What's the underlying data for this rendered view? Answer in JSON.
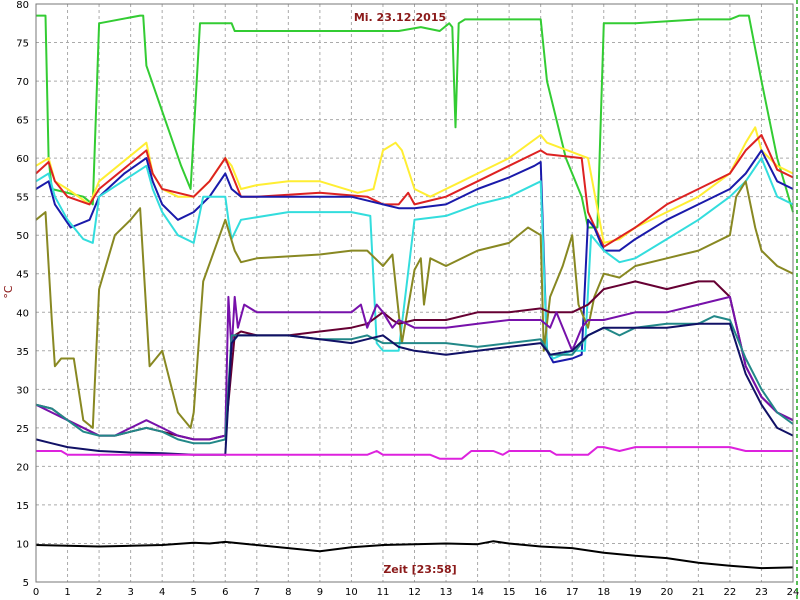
{
  "chart_data": {
    "type": "line",
    "title": "Mi. 23.12.2015",
    "xlabel": "Zeit [23:58]",
    "ylabel": "°C",
    "xlim": [
      0,
      24
    ],
    "ylim": [
      5,
      80
    ],
    "x_ticks": [
      "0",
      "1",
      "2",
      "3",
      "4",
      "5",
      "6",
      "7",
      "8",
      "9",
      "10",
      "11",
      "12",
      "13",
      "14",
      "15",
      "16",
      "17",
      "18",
      "19",
      "20",
      "21",
      "22",
      "23",
      "24"
    ],
    "y_ticks": [
      "5",
      "10",
      "15",
      "20",
      "25",
      "30",
      "35",
      "40",
      "45",
      "50",
      "55",
      "60",
      "65",
      "70",
      "75",
      "80"
    ],
    "grid": true,
    "series": [
      {
        "color": "#33cc33",
        "x": [
          0,
          0.3,
          0.4,
          0.5,
          1.5,
          1.8,
          2,
          3.3,
          3.4,
          3.5,
          4.6,
          4.9,
          5.2,
          6.2,
          6.3,
          6.5,
          11,
          11.5,
          12.2,
          12.8,
          13.1,
          13.2,
          13.3,
          13.4,
          13.6,
          15.5,
          16,
          16.2,
          16.8,
          17.3,
          17.5,
          17.8,
          18,
          19,
          21,
          22,
          22.3,
          22.6,
          23,
          23.5,
          24
        ],
        "y": [
          78.5,
          78.5,
          60,
          56,
          55,
          54,
          77.5,
          78.5,
          78.5,
          72,
          59,
          56,
          77.5,
          77.5,
          76.5,
          76.5,
          76.5,
          76.5,
          77,
          76.5,
          77.5,
          77,
          64,
          77.5,
          78,
          78,
          78,
          70,
          60,
          55,
          51,
          51,
          77.5,
          77.5,
          78,
          78,
          78.5,
          78.5,
          70,
          60,
          53
        ]
      },
      {
        "color": "#ffee33",
        "x": [
          0,
          0.4,
          0.6,
          1,
          1.7,
          2,
          3.5,
          3.7,
          4,
          4.5,
          5,
          5.5,
          6,
          6.2,
          6.5,
          7,
          8,
          9,
          10.2,
          10.7,
          11,
          11.4,
          11.6,
          12,
          12.5,
          13,
          13.5,
          14,
          15,
          16,
          16.2,
          17.5,
          18,
          18.5,
          19,
          20,
          21,
          22,
          22.5,
          22.8,
          23,
          23.5,
          24
        ],
        "y": [
          59,
          60,
          57,
          56,
          54,
          57,
          62,
          58,
          56,
          55,
          55,
          57,
          60,
          59,
          56,
          56.5,
          57,
          57,
          55.5,
          56,
          61,
          62,
          61,
          56,
          55,
          56,
          57,
          58,
          60,
          63,
          62,
          60,
          49,
          49.5,
          51,
          53,
          55,
          58,
          62,
          64,
          61,
          59,
          58
        ]
      },
      {
        "color": "#dd2222",
        "x": [
          0,
          0.4,
          0.6,
          1,
          1.7,
          2,
          3.5,
          3.7,
          4,
          5,
          5.5,
          6,
          6.2,
          6.5,
          7,
          9,
          10.5,
          11,
          11.5,
          11.8,
          12,
          12.5,
          13,
          14,
          15,
          16,
          16.2,
          17.3,
          17.5,
          18,
          19,
          20,
          21,
          22,
          22.5,
          23,
          23.5,
          24
        ],
        "y": [
          58,
          59.5,
          57,
          55,
          54,
          56,
          61,
          58,
          56,
          55,
          57,
          60,
          58,
          55,
          55,
          55.5,
          55,
          54,
          54,
          55.5,
          54,
          54.5,
          55,
          57,
          59,
          61,
          60.5,
          60,
          53,
          48.5,
          51,
          54,
          56,
          58,
          61,
          63,
          58.5,
          57.5
        ]
      },
      {
        "color": "#1a1aaa",
        "x": [
          0,
          0.4,
          0.6,
          1.1,
          1.7,
          2,
          2.8,
          3.5,
          3.7,
          4,
          4.5,
          5,
          5.5,
          6,
          6.2,
          6.5,
          8,
          10,
          11,
          11.5,
          12,
          13,
          14,
          15,
          15.8,
          16,
          16.2,
          16.4,
          17,
          17.3,
          17.5,
          17.7,
          18,
          18.5,
          19,
          20,
          21,
          22,
          22.5,
          23,
          23.5,
          24
        ],
        "y": [
          56,
          57,
          54,
          51,
          52,
          55,
          58,
          60,
          57,
          54,
          52,
          53,
          55,
          58,
          56,
          55,
          55,
          55,
          54,
          53.5,
          53.5,
          54,
          56,
          57.5,
          59,
          59.5,
          35,
          33.5,
          34,
          34.5,
          52,
          51,
          48,
          48,
          49.5,
          52,
          54,
          56,
          58,
          61,
          57,
          56
        ]
      },
      {
        "color": "#33dddd",
        "x": [
          0,
          0.4,
          0.6,
          1,
          1.5,
          1.8,
          2,
          3.5,
          3.7,
          4,
          4.5,
          5,
          5.3,
          6,
          6.1,
          6.2,
          6.5,
          8,
          10,
          10.6,
          10.8,
          11,
          11.5,
          12,
          13,
          14,
          15,
          16,
          16.2,
          16.4,
          17,
          17.4,
          17.6,
          18,
          18.5,
          19,
          20,
          21,
          22,
          22.5,
          23,
          23.5,
          24
        ],
        "y": [
          57,
          58,
          55,
          52,
          49.5,
          49,
          55,
          59,
          56,
          53,
          50,
          49,
          55,
          55,
          52,
          49.5,
          52,
          53,
          53,
          52.5,
          36,
          35,
          35,
          52,
          52.5,
          54,
          55,
          57,
          35,
          34,
          35,
          35,
          50,
          48,
          46.5,
          47,
          49.5,
          52,
          55,
          57,
          60,
          55,
          54
        ]
      },
      {
        "color": "#888822",
        "x": [
          0,
          0.3,
          0.5,
          0.6,
          0.8,
          1.2,
          1.5,
          1.8,
          2,
          2.5,
          3,
          3.3,
          3.6,
          4,
          4.5,
          4.9,
          5,
          5.3,
          6,
          6.3,
          6.5,
          7,
          9,
          10,
          10.5,
          11,
          11.3,
          11.6,
          12,
          12.2,
          12.3,
          12.5,
          13,
          14,
          15,
          15.6,
          16,
          16.1,
          16.3,
          16.7,
          17,
          17.2,
          17.5,
          17.7,
          18,
          18.5,
          19,
          20,
          21,
          22,
          22.2,
          22.5,
          22.8,
          23,
          23.5,
          24
        ],
        "y": [
          52,
          53,
          39,
          33,
          34,
          34,
          26,
          25,
          43,
          50,
          52,
          53.5,
          33,
          35,
          27,
          25,
          27,
          44,
          52,
          48,
          46.5,
          47,
          47.5,
          48,
          48,
          46,
          47.5,
          36,
          45.5,
          47,
          41,
          47,
          46,
          48,
          49,
          51,
          50,
          35,
          42,
          46,
          50,
          41,
          38,
          42,
          45,
          44.5,
          46,
          47,
          48,
          50,
          55,
          57,
          51,
          48,
          46,
          45
        ]
      },
      {
        "color": "#660033",
        "x": [
          0,
          0.5,
          1,
          1.5,
          2,
          2.5,
          3,
          3.5,
          4,
          4.5,
          5,
          5.5,
          6,
          6.3,
          6.5,
          7,
          8,
          9,
          10,
          10.5,
          11,
          11.3,
          11.5,
          12,
          13,
          14,
          15,
          16,
          16.3,
          17,
          17.5,
          18,
          18.5,
          19,
          20,
          21,
          21.5,
          22,
          22.5,
          23,
          23.5,
          24
        ],
        "y": [
          28,
          27.5,
          26,
          25,
          24,
          24,
          24.5,
          25,
          24.5,
          24,
          23.5,
          23.5,
          24,
          37,
          37.5,
          37,
          37,
          37.5,
          38,
          38.5,
          40,
          39,
          38.5,
          39,
          39,
          40,
          40,
          40.5,
          40,
          40,
          41,
          43,
          43.5,
          44,
          43,
          44,
          44,
          42,
          33,
          29,
          27,
          26
        ]
      },
      {
        "color": "#7711aa",
        "x": [
          0,
          0.5,
          1,
          1.5,
          2,
          2.5,
          3,
          3.5,
          4,
          4.5,
          5,
          5.5,
          6,
          6.1,
          6.2,
          6.3,
          6.4,
          6.6,
          7,
          8,
          9,
          10,
          10.3,
          10.5,
          10.8,
          11,
          11.3,
          11.5,
          12,
          13,
          14,
          15,
          16,
          16.3,
          16.5,
          17,
          17.3,
          17.5,
          18,
          19,
          20,
          21,
          22,
          22.5,
          23,
          23.5,
          24
        ],
        "y": [
          28,
          27,
          26,
          25,
          24,
          24,
          25,
          26,
          25,
          24,
          23.5,
          23.5,
          24,
          42,
          35,
          42,
          38,
          41,
          40,
          40,
          40,
          40,
          41,
          38,
          41,
          40,
          38,
          39,
          38,
          38,
          38.5,
          39,
          39,
          38,
          40,
          35,
          38,
          39,
          39,
          40,
          40,
          41,
          42,
          33,
          29,
          27,
          26
        ]
      },
      {
        "color": "#228888",
        "x": [
          0,
          0.5,
          1,
          1.5,
          2,
          2.5,
          3,
          3.5,
          4,
          4.5,
          5,
          5.5,
          6,
          6.2,
          6.4,
          7,
          8,
          9,
          10,
          10.5,
          11,
          12,
          13,
          14,
          15,
          16,
          16.3,
          17,
          17.5,
          18,
          18.5,
          19,
          20,
          21,
          21.5,
          22,
          22.5,
          23,
          23.5,
          24
        ],
        "y": [
          28,
          27.5,
          26,
          24.5,
          24,
          24,
          24.5,
          25,
          24.5,
          23.5,
          23,
          23,
          23.5,
          37,
          37,
          37,
          37,
          36.5,
          36.5,
          37,
          36,
          36,
          36,
          35.5,
          36,
          36.5,
          34.5,
          34.5,
          37,
          38,
          37,
          38,
          38.5,
          38.5,
          39.5,
          39,
          34,
          30,
          27,
          25.5
        ]
      },
      {
        "color": "#111166",
        "x": [
          0,
          0.5,
          1,
          2,
          3,
          4,
          5,
          6,
          6.2,
          6.4,
          7,
          8,
          9,
          10,
          10.5,
          11,
          11.5,
          12,
          13,
          14,
          15,
          16,
          16.3,
          17,
          17.5,
          18,
          19,
          20,
          21,
          22,
          22.5,
          23,
          23.5,
          24
        ],
        "y": [
          23.5,
          23,
          22.5,
          22,
          21.8,
          21.7,
          21.5,
          21.5,
          36,
          37,
          37,
          37,
          36.5,
          36,
          36.5,
          37,
          35.5,
          35,
          34.5,
          35,
          35.5,
          36,
          34.5,
          35,
          37,
          38,
          38,
          38,
          38.5,
          38.5,
          32,
          28,
          25,
          24
        ]
      },
      {
        "color": "#dd22dd",
        "x": [
          0,
          0.8,
          1,
          10.5,
          10.8,
          11,
          12.5,
          12.8,
          13.5,
          13.8,
          14.5,
          14.8,
          15,
          16,
          16.3,
          16.5,
          17.5,
          17.8,
          18,
          18.5,
          19,
          21,
          21.5,
          22,
          22.5,
          23,
          24
        ],
        "y": [
          22,
          22,
          21.5,
          21.5,
          22,
          21.5,
          21.5,
          21,
          21,
          22,
          22,
          21.5,
          22,
          22,
          22,
          21.5,
          21.5,
          22.5,
          22.5,
          22,
          22.5,
          22.5,
          22.5,
          22.5,
          22,
          22,
          22
        ]
      },
      {
        "color": "#000000",
        "x": [
          0,
          1,
          2,
          3,
          4,
          5,
          5.5,
          6,
          7,
          8,
          9,
          10,
          11,
          12,
          13,
          14,
          14.5,
          15,
          16,
          17,
          18,
          19,
          20,
          21,
          21.5,
          22,
          23,
          24
        ],
        "y": [
          9.8,
          9.7,
          9.6,
          9.7,
          9.8,
          10.1,
          10,
          10.2,
          9.8,
          9.4,
          9,
          9.5,
          9.8,
          9.9,
          10,
          9.9,
          10.3,
          10,
          9.6,
          9.4,
          8.8,
          8.4,
          8.1,
          7.5,
          7.3,
          7.1,
          6.8,
          6.9
        ]
      }
    ]
  }
}
